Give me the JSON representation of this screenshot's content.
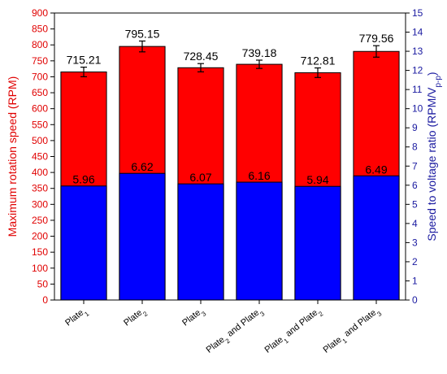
{
  "chart_data": {
    "type": "bar",
    "categories": [
      {
        "base": "Plate",
        "sub": "1",
        "rest": ""
      },
      {
        "base": "Plate",
        "sub": "2",
        "rest": ""
      },
      {
        "base": "Plate",
        "sub": "3",
        "rest": ""
      },
      {
        "base": "Plate",
        "sub": "2",
        "rest": " and Plate",
        "sub2": "3"
      },
      {
        "base": "Plate",
        "sub": "1",
        "rest": " and Plate",
        "sub2": "2"
      },
      {
        "base": "Plate",
        "sub": "1",
        "rest": " and Plate",
        "sub2": "3"
      }
    ],
    "series": [
      {
        "axis": "left",
        "values": [
          715.21,
          795.15,
          728.45,
          739.18,
          712.81,
          779.56
        ],
        "errors": [
          15,
          17,
          13,
          13,
          15,
          18
        ],
        "labels": [
          "715.21",
          "795.15",
          "728.45",
          "739.18",
          "712.81",
          "779.56"
        ],
        "color": "#ff0000"
      },
      {
        "axis": "right",
        "values": [
          5.96,
          6.62,
          6.07,
          6.16,
          5.94,
          6.49
        ],
        "labels": [
          "5.96",
          "6.62",
          "6.07",
          "6.16",
          "5.94",
          "6.49"
        ],
        "color": "#0000ff"
      }
    ],
    "y_left": {
      "label_main": "Maximum rotation speed (RPM)",
      "lim": [
        0,
        900
      ],
      "ticks": [
        0,
        50,
        100,
        150,
        200,
        250,
        300,
        350,
        400,
        450,
        500,
        550,
        600,
        650,
        700,
        750,
        800,
        850,
        900
      ],
      "color": "#e00000"
    },
    "y_right": {
      "label_main": "Speed to voltage ratio (RPM/V",
      "label_sub": "p-p",
      "label_end": ")",
      "lim": [
        0,
        15
      ],
      "ticks": [
        0,
        1,
        2,
        3,
        4,
        5,
        6,
        7,
        8,
        9,
        10,
        11,
        12,
        13,
        14,
        15
      ],
      "color": "#1a1aa0"
    },
    "grid": false,
    "legend": "none"
  }
}
